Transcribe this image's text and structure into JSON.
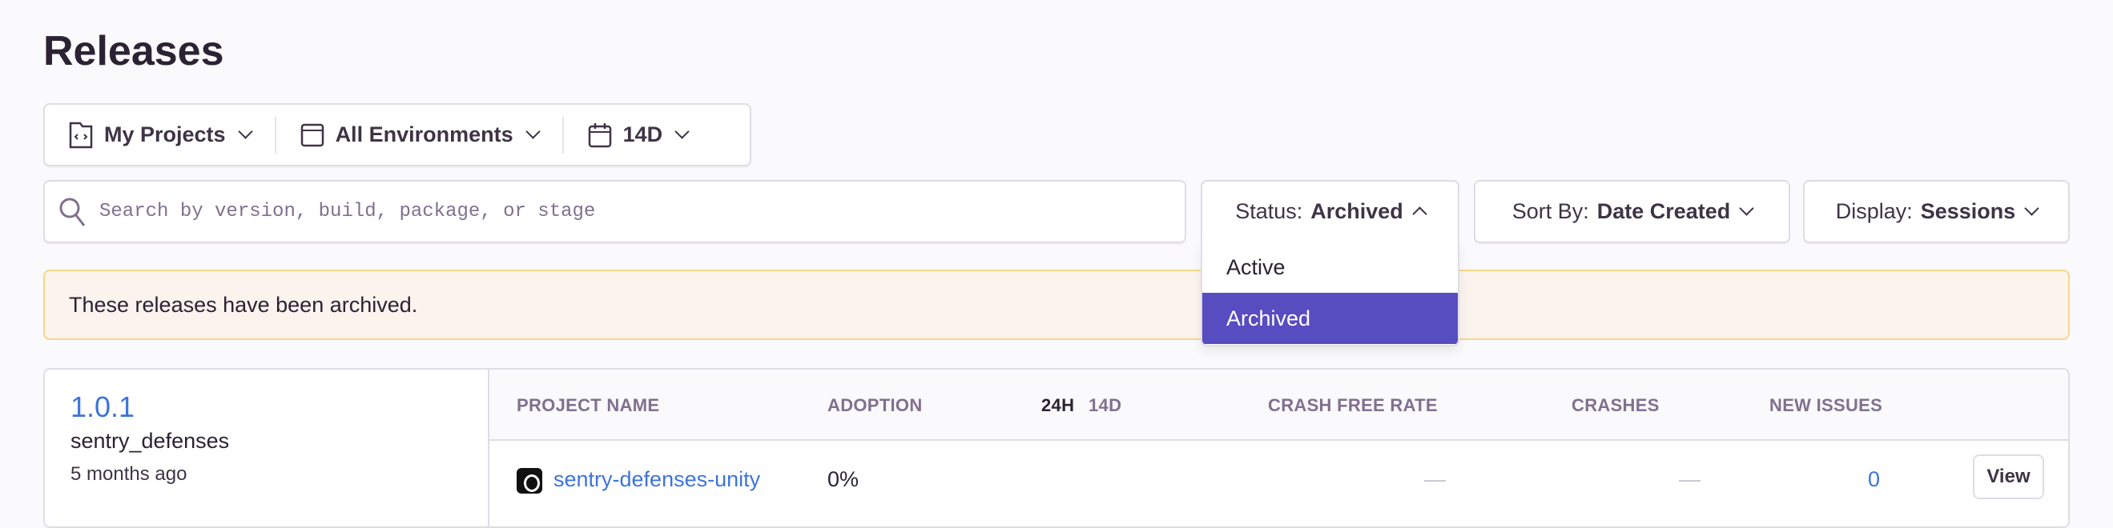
{
  "page": {
    "title": "Releases"
  },
  "filters": {
    "projects": "My Projects",
    "environments": "All Environments",
    "period": "14D"
  },
  "search": {
    "placeholder": "Search by version, build, package, or stage",
    "value": ""
  },
  "status": {
    "label": "Status:",
    "value": "Archived",
    "options": [
      "Active",
      "Archived"
    ],
    "selected": "Archived"
  },
  "sort": {
    "label": "Sort By:",
    "value": "Date Created"
  },
  "display": {
    "label": "Display:",
    "value": "Sessions"
  },
  "banner": {
    "text": "These releases have been archived."
  },
  "colors": {
    "accent": "#574cc0",
    "link": "#3d74db",
    "banner_bg": "#fbf3ee",
    "banner_border": "#f5d78a"
  },
  "release": {
    "version": "1.0.1",
    "project": "sentry_defenses",
    "age": "5 months ago",
    "columns": {
      "project_name": "PROJECT NAME",
      "adoption": "ADOPTION",
      "period_24h": "24H",
      "period_14d": "14D",
      "crash_free_rate": "CRASH FREE RATE",
      "crashes": "CRASHES",
      "new_issues": "NEW ISSUES"
    },
    "rows": [
      {
        "project": "sentry-defenses-unity",
        "adoption": "0%",
        "crash_free_rate": "—",
        "crashes": "—",
        "new_issues": "0",
        "action": "View"
      }
    ]
  }
}
